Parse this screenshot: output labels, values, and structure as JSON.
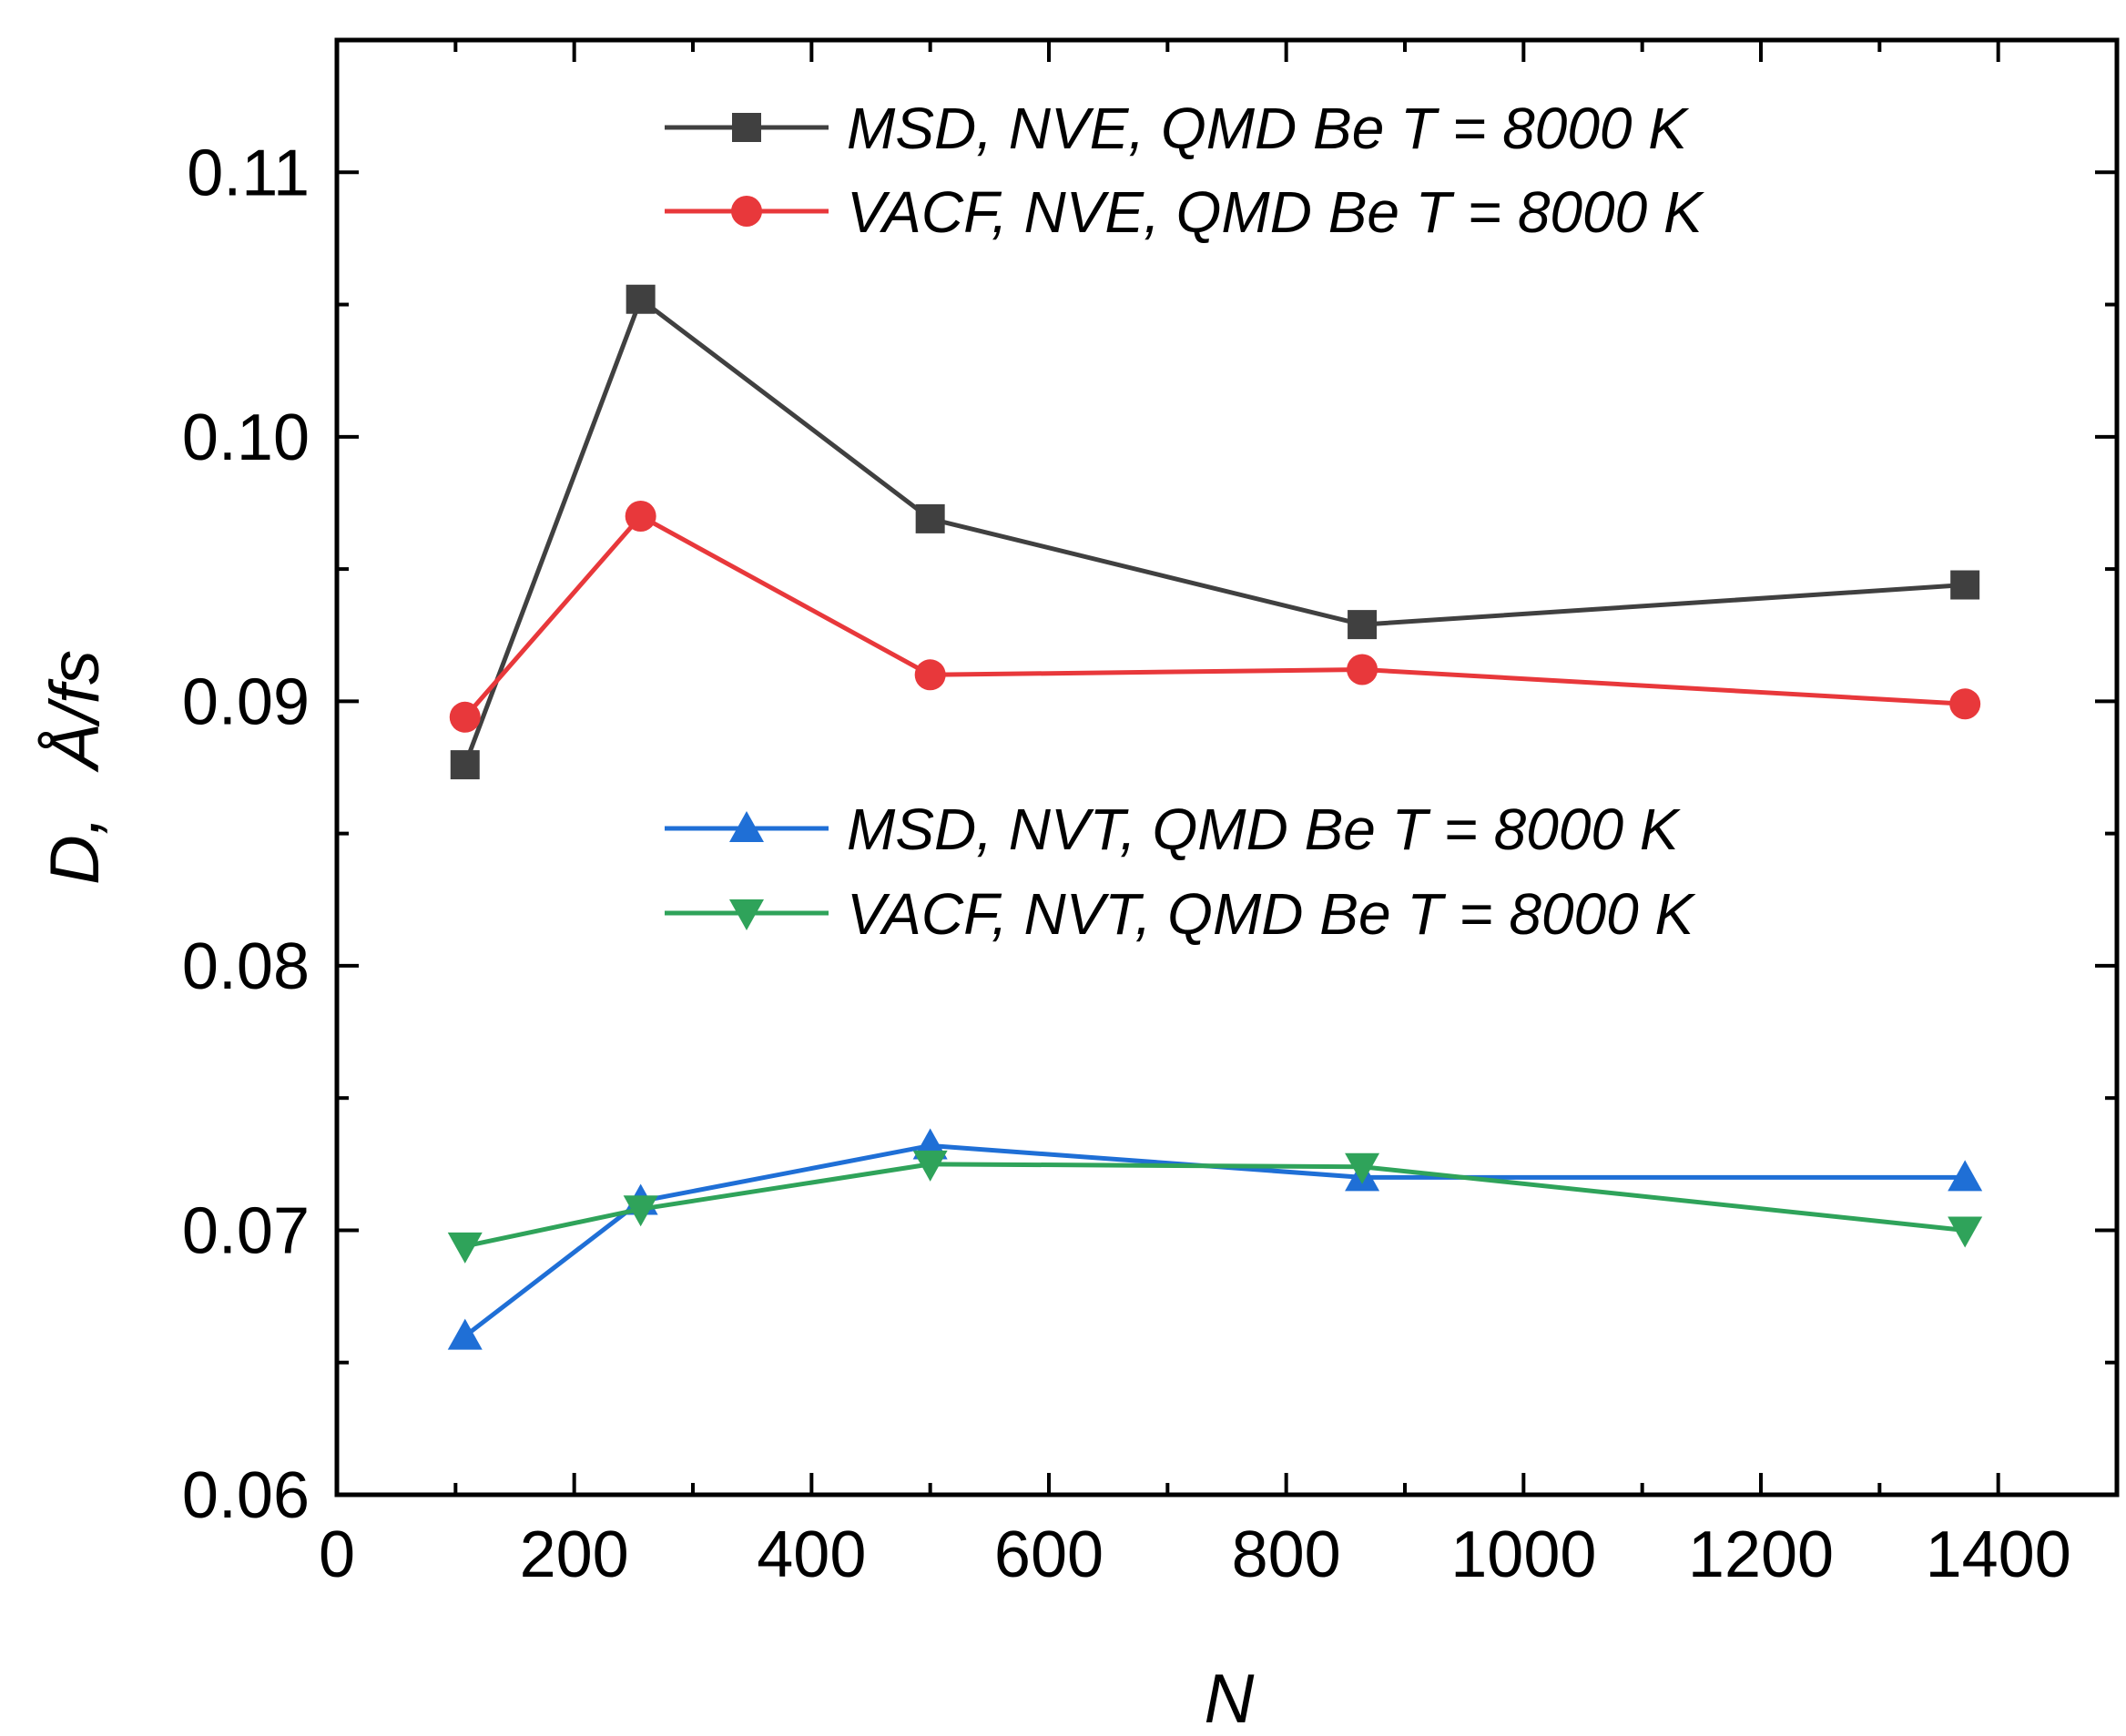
{
  "chart_data": {
    "type": "line",
    "title": "",
    "xlabel": "N",
    "ylabel_parts": [
      "D,",
      "Å/fs"
    ],
    "xlim": [
      0,
      1500
    ],
    "ylim": [
      0.06,
      0.115
    ],
    "x_major_ticks": [
      0,
      200,
      400,
      600,
      800,
      1000,
      1200,
      1400
    ],
    "x_tick_labels": [
      "0",
      "200",
      "400",
      "600",
      "800",
      "1000",
      "1200",
      "1400"
    ],
    "x_minor_ticks": [
      100,
      300,
      500,
      700,
      900,
      1100,
      1300,
      1500
    ],
    "y_major_ticks": [
      0.06,
      0.07,
      0.08,
      0.09,
      0.1,
      0.11
    ],
    "y_tick_labels": [
      "0.06",
      "0.07",
      "0.08",
      "0.09",
      "0.10",
      "0.11"
    ],
    "y_minor_ticks": [
      0.065,
      0.075,
      0.085,
      0.095,
      0.105
    ],
    "grid": false,
    "series": [
      {
        "name": "MSD, NVE, QMD Be T = 8000 K",
        "color": "#404040",
        "marker": "square",
        "x": [
          108,
          256,
          500,
          864,
          1372
        ],
        "y": [
          0.0876,
          0.1052,
          0.0969,
          0.0929,
          0.0944
        ]
      },
      {
        "name": "VACF, NVE, QMD Be T = 8000 K",
        "color": "#e8383b",
        "marker": "circle",
        "x": [
          108,
          256,
          500,
          864,
          1372
        ],
        "y": [
          0.0894,
          0.097,
          0.091,
          0.0912,
          0.0899
        ]
      },
      {
        "name": "MSD, NVT, QMD Be T = 8000 K",
        "color": "#1f6fd6",
        "marker": "triangle-up",
        "x": [
          108,
          256,
          500,
          864,
          1372
        ],
        "y": [
          0.066,
          0.0711,
          0.0732,
          0.072,
          0.072
        ]
      },
      {
        "name": "VACF, NVT, QMD Be T = 8000 K",
        "color": "#2fa35a",
        "marker": "triangle-down",
        "x": [
          108,
          256,
          500,
          864,
          1372
        ],
        "y": [
          0.0694,
          0.0708,
          0.0725,
          0.0724,
          0.07
        ]
      }
    ],
    "legend_placement": "top-center (two groups)"
  }
}
